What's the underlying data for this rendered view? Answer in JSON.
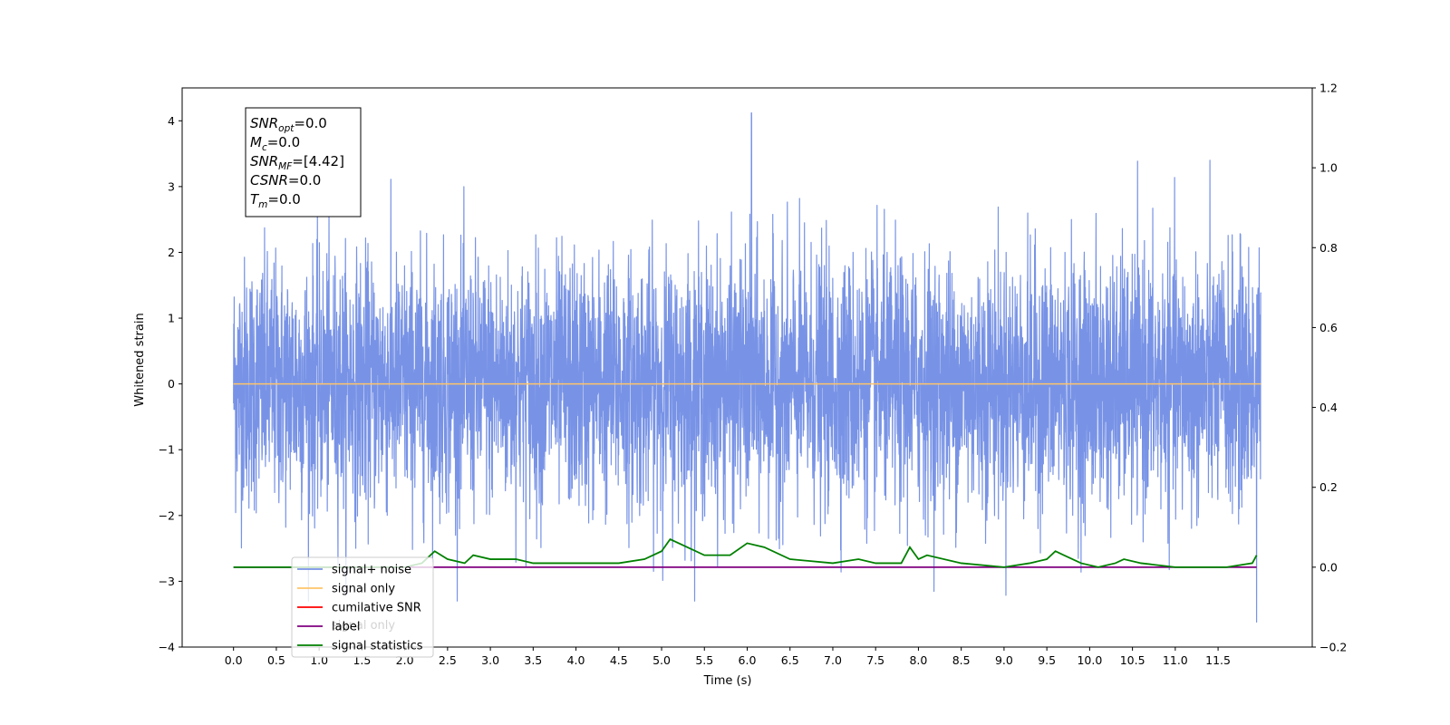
{
  "chart_data": {
    "type": "line",
    "xlabel": "Time (s)",
    "ylabel": "Whitened strain",
    "xlim": [
      -0.6,
      12.6
    ],
    "ylim": [
      -4.0,
      4.5
    ],
    "y2lim": [
      -0.2,
      1.2
    ],
    "x_ticks": [
      "0.0",
      "0.5",
      "1.0",
      "1.5",
      "2.0",
      "2.5",
      "3.0",
      "3.5",
      "4.0",
      "4.5",
      "5.0",
      "5.5",
      "6.0",
      "6.5",
      "7.0",
      "7.5",
      "8.0",
      "8.5",
      "9.0",
      "9.5",
      "10.0",
      "10.5",
      "11.0",
      "11.5"
    ],
    "y_ticks": [
      "−4",
      "−3",
      "−2",
      "−1",
      "0",
      "1",
      "2",
      "3",
      "4"
    ],
    "y2_ticks": [
      "−0.2",
      "0.0",
      "0.2",
      "0.4",
      "0.6",
      "0.8",
      "1.0",
      "1.2"
    ],
    "legend_position": "lower-left",
    "legend": [
      {
        "label": "signal+ noise",
        "color": "#7893e6"
      },
      {
        "label": "signal only",
        "color": "#ffc46a"
      },
      {
        "label": "cumilative SNR",
        "color": "#ff0000"
      },
      {
        "label": "label",
        "color": "#800080"
      },
      {
        "label": "signal statistics",
        "color": "#008000"
      }
    ],
    "overlapped_legend_text": "signal only",
    "info_box": [
      {
        "var": "SNR",
        "sub": "opt",
        "value": "=0.0"
      },
      {
        "var": "M",
        "sub": "c",
        "value": "=0.0"
      },
      {
        "var": "SNR",
        "sub": "MF",
        "value": "=[4.42]"
      },
      {
        "var": "CSNR",
        "sub": "",
        "value": "=0.0"
      },
      {
        "var": "T",
        "sub": "m",
        "value": "=0.0"
      }
    ],
    "series": [
      {
        "name": "signal+ noise",
        "axis": "left",
        "color": "#7893e6",
        "x_range": [
          0.0,
          12.0
        ],
        "envelope_max": 4.12,
        "envelope_min": -3.62,
        "max_at_x": 6.05,
        "min_at_x": 11.95
      },
      {
        "name": "signal only",
        "axis": "left",
        "color": "#ffc46a",
        "x": [
          0.0,
          12.0
        ],
        "values": [
          0.0,
          0.0
        ]
      },
      {
        "name": "label",
        "axis": "right",
        "color": "#800080",
        "x": [
          0.0,
          11.95
        ],
        "values": [
          0.0,
          0.0
        ]
      },
      {
        "name": "signal statistics",
        "axis": "right",
        "color": "#008000",
        "x": [
          0.0,
          0.5,
          1.0,
          1.5,
          2.0,
          2.2,
          2.35,
          2.5,
          2.7,
          2.8,
          3.0,
          3.3,
          3.5,
          3.8,
          4.0,
          4.5,
          4.8,
          5.0,
          5.1,
          5.3,
          5.5,
          5.8,
          6.0,
          6.2,
          6.5,
          7.0,
          7.3,
          7.5,
          7.8,
          7.9,
          8.0,
          8.1,
          8.5,
          9.0,
          9.3,
          9.5,
          9.6,
          9.7,
          9.9,
          10.1,
          10.3,
          10.4,
          10.6,
          11.0,
          11.3,
          11.6,
          11.9,
          11.95
        ],
        "values": [
          0.0,
          0.0,
          0.0,
          0.0,
          0.0,
          0.01,
          0.04,
          0.02,
          0.01,
          0.03,
          0.02,
          0.02,
          0.01,
          0.01,
          0.01,
          0.01,
          0.02,
          0.04,
          0.07,
          0.05,
          0.03,
          0.03,
          0.06,
          0.05,
          0.02,
          0.01,
          0.02,
          0.01,
          0.01,
          0.05,
          0.02,
          0.03,
          0.01,
          0.0,
          0.01,
          0.02,
          0.04,
          0.03,
          0.01,
          0.0,
          0.01,
          0.02,
          0.01,
          0.0,
          0.0,
          0.0,
          0.01,
          0.03
        ]
      }
    ]
  }
}
